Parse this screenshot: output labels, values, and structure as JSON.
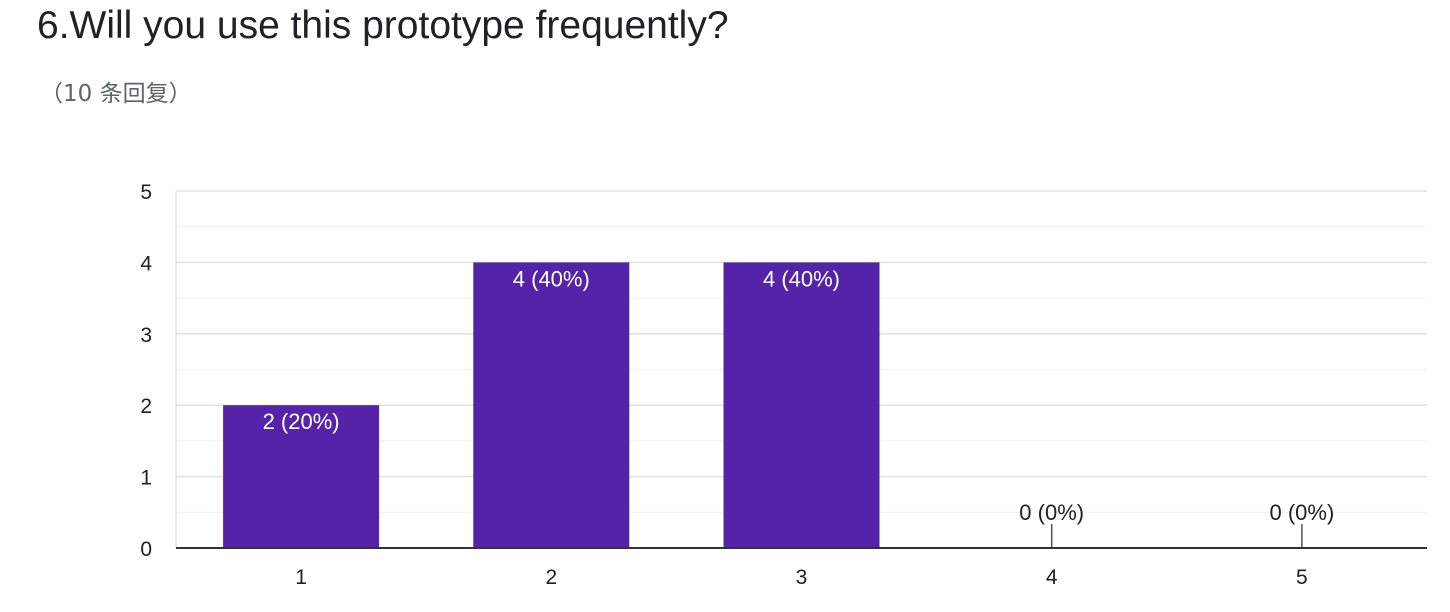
{
  "question": {
    "title": "6.Will you use this prototype frequently?",
    "response_count": "（10 条回复）"
  },
  "colors": {
    "bar": "#5523a8",
    "grid_major": "#e0e0e0",
    "grid_minor": "#f1f1f1",
    "axis": "#333333"
  },
  "chart_data": {
    "type": "bar",
    "categories": [
      "1",
      "2",
      "3",
      "4",
      "5"
    ],
    "values": [
      2,
      4,
      4,
      0,
      0
    ],
    "data_labels": [
      "2 (20%)",
      "4 (40%)",
      "4 (40%)",
      "0 (0%)",
      "0 (0%)"
    ],
    "ylim": [
      0,
      5
    ],
    "yticks": [
      "0",
      "1",
      "2",
      "3",
      "4",
      "5"
    ],
    "grid": true,
    "title": "",
    "xlabel": "",
    "ylabel": ""
  }
}
